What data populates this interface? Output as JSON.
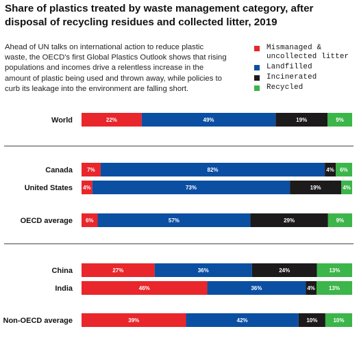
{
  "title": "Share of plastics treated by waste management category, after disposal of recycling residues and collected litter, 2019",
  "intro": "Ahead of UN talks on international action to reduce plastic waste, the OECD's first Global Plastics Outlook shows that rising populations and incomes drive a relentless increase in the amount of plastic being used and thrown away, while policies to curb its leakage into the environment are falling short.",
  "legend": [
    {
      "label": "Mismanaged & uncollected litter",
      "color": "#e8262b"
    },
    {
      "label": "Landfilled",
      "color": "#0b4fa3"
    },
    {
      "label": "Incinerated",
      "color": "#1c1a1a"
    },
    {
      "label": "Recycled",
      "color": "#3cb54a"
    }
  ],
  "chart_data": {
    "type": "bar",
    "orientation": "horizontal",
    "stacked": true,
    "unit": "%",
    "categories": [
      "World",
      "Canada",
      "United States",
      "OECD average",
      "China",
      "India",
      "Non-OECD average"
    ],
    "series": [
      {
        "name": "Mismanaged & uncollected litter",
        "color": "#e8262b",
        "values": [
          22,
          7,
          4,
          6,
          27,
          46,
          39
        ]
      },
      {
        "name": "Landfilled",
        "color": "#0b4fa3",
        "values": [
          49,
          82,
          73,
          57,
          36,
          36,
          42
        ]
      },
      {
        "name": "Incinerated",
        "color": "#1c1a1a",
        "values": [
          19,
          4,
          19,
          29,
          24,
          4,
          10
        ]
      },
      {
        "name": "Recycled",
        "color": "#3cb54a",
        "values": [
          9,
          6,
          4,
          9,
          13,
          13,
          10
        ]
      }
    ],
    "data_labels": [
      [
        "22%",
        "49%",
        "19%",
        "9%"
      ],
      [
        "7%",
        "82%",
        "4%",
        "6%"
      ],
      [
        "4%",
        "73%",
        "19%",
        "4%"
      ],
      [
        "6%",
        "57%",
        "29%",
        "9%"
      ],
      [
        "27%",
        "36%",
        "24%",
        "13%"
      ],
      [
        "46%",
        "36%",
        "4%",
        "13%"
      ],
      [
        "39%",
        "42%",
        "10%",
        "10%"
      ]
    ]
  }
}
